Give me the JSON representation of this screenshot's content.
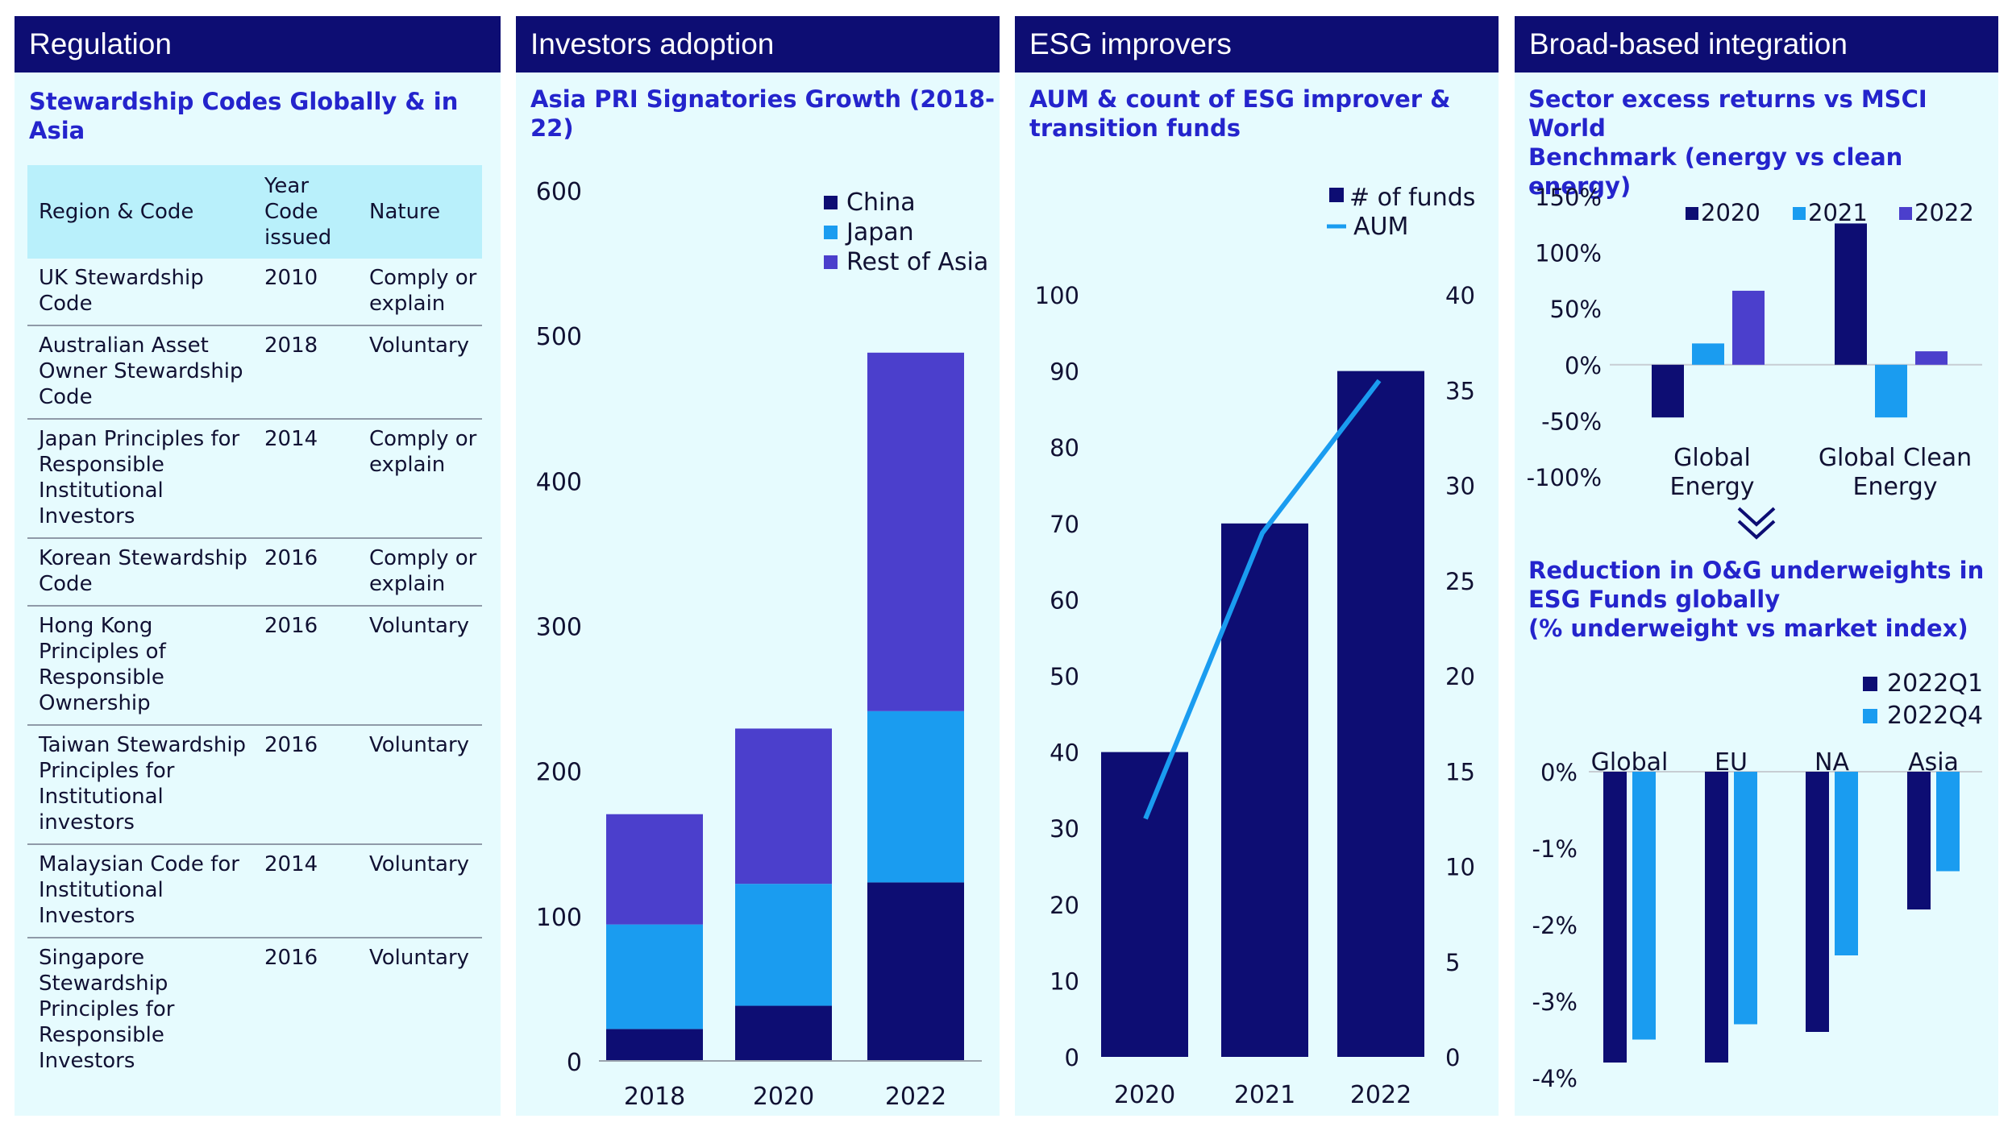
{
  "panels": {
    "regulation": {
      "header": "Regulation",
      "subtitle": "Stewardship Codes Globally & in Asia",
      "table": {
        "headers": [
          "Region & Code",
          "Year Code issued",
          "Nature"
        ],
        "rows": [
          [
            "UK Stewardship Code",
            "2010",
            "Comply or explain"
          ],
          [
            "Australian Asset Owner Stewardship Code",
            "2018",
            "Voluntary"
          ],
          [
            "Japan Principles for Responsible Institutional Investors",
            "2014",
            "Comply or explain"
          ],
          [
            "Korean Stewardship Code",
            "2016",
            "Comply or explain"
          ],
          [
            "Hong Kong Principles of Responsible Ownership",
            "2016",
            "Voluntary"
          ],
          [
            "Taiwan Stewardship Principles for Institutional investors",
            "2016",
            "Voluntary"
          ],
          [
            "Malaysian Code for Institutional Investors",
            "2014",
            "Voluntary"
          ],
          [
            "Singapore Stewardship Principles for Responsible Investors",
            "2016",
            "Voluntary"
          ]
        ]
      }
    },
    "investors": {
      "header": "Investors adoption",
      "subtitle": "Asia PRI Signatories Growth (2018-22)"
    },
    "esg": {
      "header": "ESG improvers",
      "subtitle_line1": "AUM & count of ESG improver &",
      "subtitle_line2": "transition funds"
    },
    "broad": {
      "header": "Broad-based integration",
      "subtitle_line1": "Sector excess returns vs MSCI World",
      "subtitle_line2": "Benchmark (energy vs clean energy)",
      "chevron_icon": "double-chevron-down-icon",
      "subtitle2_line1": "Reduction in O&G underweights in",
      "subtitle2_line2": "ESG Funds globally",
      "subtitle2_line3": "(% underweight vs market index)"
    }
  },
  "colors": {
    "navy": "#0d0d73",
    "sky": "#1a9cf0",
    "purple": "#4b3fcc",
    "panel_bg": "#e6fbfe",
    "table_header_bg": "#b9f0fb",
    "subtitle": "#2424cc"
  },
  "chart_data": [
    {
      "id": "pri",
      "type": "bar",
      "stacked": true,
      "categories": [
        "2018",
        "2020",
        "2022"
      ],
      "series": [
        {
          "name": "China",
          "values": [
            22,
            38,
            123
          ],
          "color": "#0d0d73"
        },
        {
          "name": "Japan",
          "values": [
            72,
            84,
            118
          ],
          "color": "#1a9cf0"
        },
        {
          "name": "Rest of Asia",
          "values": [
            76,
            107,
            247
          ],
          "color": "#4b3fcc"
        }
      ],
      "ylim": [
        0,
        600
      ],
      "yticks": [
        "0",
        "100",
        "200",
        "300",
        "400",
        "500",
        "600"
      ],
      "legend": "top-right"
    },
    {
      "id": "esg",
      "type": "bar",
      "categories": [
        "2020",
        "2021",
        "2022"
      ],
      "series": [
        {
          "name": "# of funds",
          "type": "bar",
          "values": [
            40,
            70,
            90
          ],
          "color": "#0d0d73"
        },
        {
          "name": "AUM",
          "type": "line",
          "axis": "right",
          "values": [
            12.5,
            27.5,
            35.5
          ],
          "color": "#1a9cf0"
        }
      ],
      "ylim": [
        0,
        100
      ],
      "yticks": [
        "0",
        "10",
        "20",
        "30",
        "40",
        "50",
        "60",
        "70",
        "80",
        "90",
        "100"
      ],
      "ylim_right": [
        0,
        40
      ],
      "yticks_right": [
        "0",
        "5",
        "10",
        "15",
        "20",
        "25",
        "30",
        "35",
        "40"
      ],
      "legend": "top-right"
    },
    {
      "id": "sector",
      "type": "bar",
      "categories": [
        "Global Energy",
        "Global Clean Energy"
      ],
      "category_lines": [
        [
          "Global",
          "Energy"
        ],
        [
          "Global Clean",
          "Energy"
        ]
      ],
      "series": [
        {
          "name": "2020",
          "values": [
            -47,
            126
          ],
          "color": "#0d0d73"
        },
        {
          "name": "2021",
          "values": [
            19,
            -47
          ],
          "color": "#1a9cf0"
        },
        {
          "name": "2022",
          "values": [
            66,
            12
          ],
          "color": "#4b3fcc"
        }
      ],
      "ylim": [
        -100,
        150
      ],
      "yticks": [
        "-100%",
        "-50%",
        "0%",
        "50%",
        "100%",
        "150%"
      ],
      "legend": "top"
    },
    {
      "id": "underweight",
      "type": "bar",
      "categories": [
        "Global",
        "EU",
        "NA",
        "Asia"
      ],
      "series": [
        {
          "name": "2022Q1",
          "values": [
            -3.8,
            -3.8,
            -3.4,
            -1.8
          ],
          "color": "#0d0d73"
        },
        {
          "name": "2022Q4",
          "values": [
            -3.5,
            -3.3,
            -2.4,
            -1.3
          ],
          "color": "#1a9cf0"
        }
      ],
      "ylim": [
        -4,
        0
      ],
      "yticks": [
        "0%",
        "-1%",
        "-2%",
        "-3%",
        "-4%"
      ],
      "legend": "top-right"
    }
  ]
}
